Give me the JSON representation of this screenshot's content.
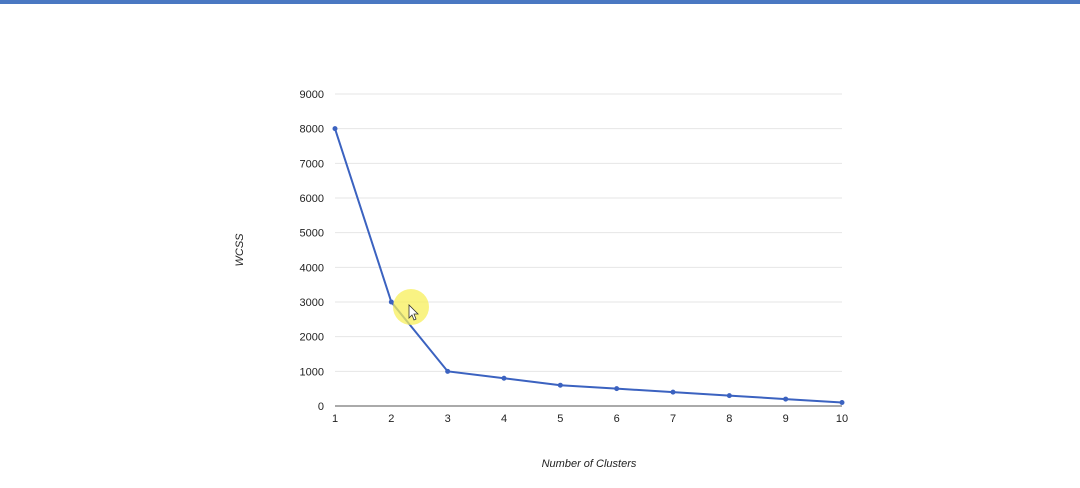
{
  "chart_data": {
    "type": "line",
    "title": "",
    "xlabel": "Number of Clusters",
    "ylabel": "WCSS",
    "x": [
      1,
      2,
      3,
      4,
      5,
      6,
      7,
      8,
      9,
      10
    ],
    "series": [
      {
        "values": [
          8000,
          3000,
          1000,
          800,
          600,
          500,
          400,
          300,
          200,
          100
        ]
      }
    ],
    "xlim": [
      1,
      10
    ],
    "ylim": [
      0,
      9000
    ],
    "yticks": [
      0,
      1000,
      2000,
      3000,
      4000,
      5000,
      6000,
      7000,
      8000,
      9000
    ],
    "xticks": [
      1,
      2,
      3,
      4,
      5,
      6,
      7,
      8,
      9,
      10
    ],
    "grid": true,
    "line_color": "#3b62c0",
    "grid_color": "#e6e6e6",
    "top_bar_color": "#4a78c2",
    "cursor_highlight_color": "#f7ef5a"
  }
}
